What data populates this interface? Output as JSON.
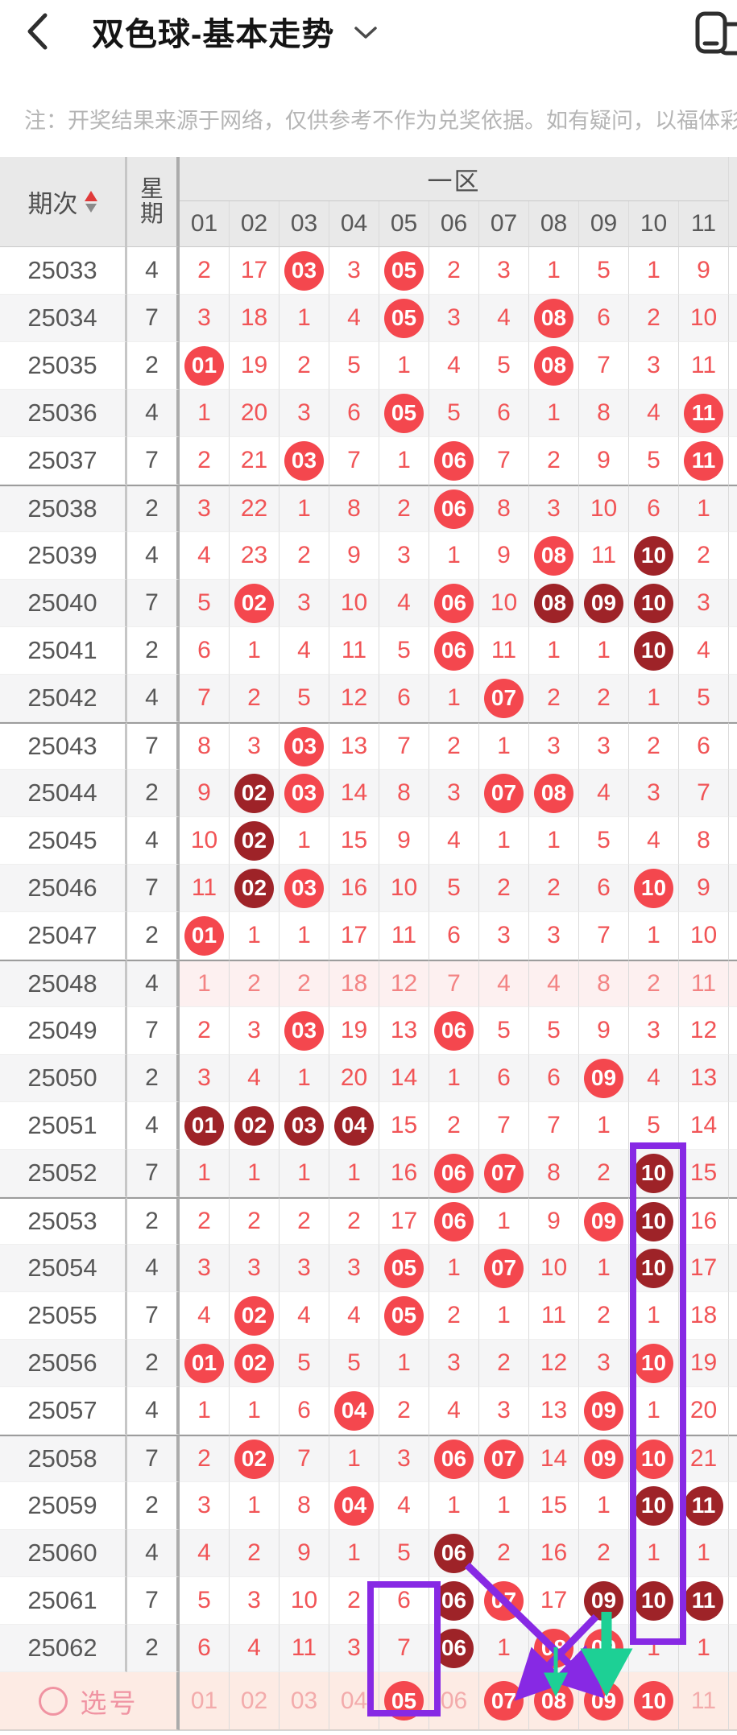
{
  "navbar": {
    "title": "双色球-基本走势",
    "back_icon": "chevron-left",
    "dropdown_icon": "chevron-down",
    "window_icon": "floating-window"
  },
  "note": "注：开奖结果来源于网络，仅供参考不作为兑奖依据。如有疑问，以福体彩",
  "table": {
    "header": {
      "period": "期次",
      "week": "星期",
      "zone": "一区",
      "columns": [
        "01",
        "02",
        "03",
        "04",
        "05",
        "06",
        "07",
        "08",
        "09",
        "10",
        "11"
      ]
    },
    "rows": [
      {
        "period": "25033",
        "week": "4",
        "cells": [
          [
            "2"
          ],
          [
            "17"
          ],
          [
            "03",
            "r"
          ],
          [
            "3"
          ],
          [
            "05",
            "r"
          ],
          [
            "2"
          ],
          [
            "3"
          ],
          [
            "1"
          ],
          [
            "5"
          ],
          [
            "1"
          ],
          [
            "9"
          ]
        ]
      },
      {
        "period": "25034",
        "week": "7",
        "cells": [
          [
            "3"
          ],
          [
            "18"
          ],
          [
            "1"
          ],
          [
            "4"
          ],
          [
            "05",
            "r"
          ],
          [
            "3"
          ],
          [
            "4"
          ],
          [
            "08",
            "r"
          ],
          [
            "6"
          ],
          [
            "2"
          ],
          [
            "10"
          ]
        ]
      },
      {
        "period": "25035",
        "week": "2",
        "cells": [
          [
            "01",
            "r"
          ],
          [
            "19"
          ],
          [
            "2"
          ],
          [
            "5"
          ],
          [
            "1"
          ],
          [
            "4"
          ],
          [
            "5"
          ],
          [
            "08",
            "r"
          ],
          [
            "7"
          ],
          [
            "3"
          ],
          [
            "11"
          ]
        ]
      },
      {
        "period": "25036",
        "week": "4",
        "cells": [
          [
            "1"
          ],
          [
            "20"
          ],
          [
            "3"
          ],
          [
            "6"
          ],
          [
            "05",
            "r"
          ],
          [
            "5"
          ],
          [
            "6"
          ],
          [
            "1"
          ],
          [
            "8"
          ],
          [
            "4"
          ],
          [
            "11",
            "r"
          ]
        ]
      },
      {
        "period": "25037",
        "week": "7",
        "cells": [
          [
            "2"
          ],
          [
            "21"
          ],
          [
            "03",
            "r"
          ],
          [
            "7"
          ],
          [
            "1"
          ],
          [
            "06",
            "r"
          ],
          [
            "7"
          ],
          [
            "2"
          ],
          [
            "9"
          ],
          [
            "5"
          ],
          [
            "11",
            "r"
          ]
        ]
      },
      {
        "period": "25038",
        "week": "2",
        "cells": [
          [
            "3"
          ],
          [
            "22"
          ],
          [
            "1"
          ],
          [
            "8"
          ],
          [
            "2"
          ],
          [
            "06",
            "r"
          ],
          [
            "8"
          ],
          [
            "3"
          ],
          [
            "10"
          ],
          [
            "6"
          ],
          [
            "1"
          ]
        ]
      },
      {
        "period": "25039",
        "week": "4",
        "cells": [
          [
            "4"
          ],
          [
            "23"
          ],
          [
            "2"
          ],
          [
            "9"
          ],
          [
            "3"
          ],
          [
            "1"
          ],
          [
            "9"
          ],
          [
            "08",
            "r"
          ],
          [
            "11"
          ],
          [
            "10",
            "d"
          ],
          [
            "2"
          ]
        ]
      },
      {
        "period": "25040",
        "week": "7",
        "cells": [
          [
            "5"
          ],
          [
            "02",
            "r"
          ],
          [
            "3"
          ],
          [
            "10"
          ],
          [
            "4"
          ],
          [
            "06",
            "r"
          ],
          [
            "10"
          ],
          [
            "08",
            "d"
          ],
          [
            "09",
            "d"
          ],
          [
            "10",
            "d"
          ],
          [
            "3"
          ]
        ]
      },
      {
        "period": "25041",
        "week": "2",
        "cells": [
          [
            "6"
          ],
          [
            "1"
          ],
          [
            "4"
          ],
          [
            "11"
          ],
          [
            "5"
          ],
          [
            "06",
            "r"
          ],
          [
            "11"
          ],
          [
            "1"
          ],
          [
            "1"
          ],
          [
            "10",
            "d"
          ],
          [
            "4"
          ]
        ]
      },
      {
        "period": "25042",
        "week": "4",
        "cells": [
          [
            "7"
          ],
          [
            "2"
          ],
          [
            "5"
          ],
          [
            "12"
          ],
          [
            "6"
          ],
          [
            "1"
          ],
          [
            "07",
            "r"
          ],
          [
            "2"
          ],
          [
            "2"
          ],
          [
            "1"
          ],
          [
            "5"
          ]
        ]
      },
      {
        "period": "25043",
        "week": "7",
        "cells": [
          [
            "8"
          ],
          [
            "3"
          ],
          [
            "03",
            "r"
          ],
          [
            "13"
          ],
          [
            "7"
          ],
          [
            "2"
          ],
          [
            "1"
          ],
          [
            "3"
          ],
          [
            "3"
          ],
          [
            "2"
          ],
          [
            "6"
          ]
        ]
      },
      {
        "period": "25044",
        "week": "2",
        "cells": [
          [
            "9"
          ],
          [
            "02",
            "d"
          ],
          [
            "03",
            "r"
          ],
          [
            "14"
          ],
          [
            "8"
          ],
          [
            "3"
          ],
          [
            "07",
            "r"
          ],
          [
            "08",
            "r"
          ],
          [
            "4"
          ],
          [
            "3"
          ],
          [
            "7"
          ]
        ]
      },
      {
        "period": "25045",
        "week": "4",
        "cells": [
          [
            "10"
          ],
          [
            "02",
            "d"
          ],
          [
            "1"
          ],
          [
            "15"
          ],
          [
            "9"
          ],
          [
            "4"
          ],
          [
            "1"
          ],
          [
            "1"
          ],
          [
            "5"
          ],
          [
            "4"
          ],
          [
            "8"
          ]
        ]
      },
      {
        "period": "25046",
        "week": "7",
        "cells": [
          [
            "11"
          ],
          [
            "02",
            "d"
          ],
          [
            "03",
            "r"
          ],
          [
            "16"
          ],
          [
            "10"
          ],
          [
            "5"
          ],
          [
            "2"
          ],
          [
            "2"
          ],
          [
            "6"
          ],
          [
            "10",
            "r"
          ],
          [
            "9"
          ]
        ]
      },
      {
        "period": "25047",
        "week": "2",
        "cells": [
          [
            "01",
            "r"
          ],
          [
            "1"
          ],
          [
            "1"
          ],
          [
            "17"
          ],
          [
            "11"
          ],
          [
            "6"
          ],
          [
            "3"
          ],
          [
            "3"
          ],
          [
            "7"
          ],
          [
            "1"
          ],
          [
            "10"
          ]
        ]
      },
      {
        "period": "25048",
        "week": "4",
        "highlight": true,
        "cells": [
          [
            "1"
          ],
          [
            "2"
          ],
          [
            "2"
          ],
          [
            "18"
          ],
          [
            "12"
          ],
          [
            "7"
          ],
          [
            "4"
          ],
          [
            "4"
          ],
          [
            "8"
          ],
          [
            "2"
          ],
          [
            "11"
          ]
        ]
      },
      {
        "period": "25049",
        "week": "7",
        "cells": [
          [
            "2"
          ],
          [
            "3"
          ],
          [
            "03",
            "r"
          ],
          [
            "19"
          ],
          [
            "13"
          ],
          [
            "06",
            "r"
          ],
          [
            "5"
          ],
          [
            "5"
          ],
          [
            "9"
          ],
          [
            "3"
          ],
          [
            "12"
          ]
        ]
      },
      {
        "period": "25050",
        "week": "2",
        "cells": [
          [
            "3"
          ],
          [
            "4"
          ],
          [
            "1"
          ],
          [
            "20"
          ],
          [
            "14"
          ],
          [
            "1"
          ],
          [
            "6"
          ],
          [
            "6"
          ],
          [
            "09",
            "r"
          ],
          [
            "4"
          ],
          [
            "13"
          ]
        ]
      },
      {
        "period": "25051",
        "week": "4",
        "cells": [
          [
            "01",
            "d"
          ],
          [
            "02",
            "d"
          ],
          [
            "03",
            "d"
          ],
          [
            "04",
            "d"
          ],
          [
            "15"
          ],
          [
            "2"
          ],
          [
            "7"
          ],
          [
            "7"
          ],
          [
            "1"
          ],
          [
            "5"
          ],
          [
            "14"
          ]
        ]
      },
      {
        "period": "25052",
        "week": "7",
        "cells": [
          [
            "1"
          ],
          [
            "1"
          ],
          [
            "1"
          ],
          [
            "1"
          ],
          [
            "16"
          ],
          [
            "06",
            "r"
          ],
          [
            "07",
            "r"
          ],
          [
            "8"
          ],
          [
            "2"
          ],
          [
            "10",
            "d"
          ],
          [
            "15"
          ]
        ]
      },
      {
        "period": "25053",
        "week": "2",
        "cells": [
          [
            "2"
          ],
          [
            "2"
          ],
          [
            "2"
          ],
          [
            "2"
          ],
          [
            "17"
          ],
          [
            "06",
            "r"
          ],
          [
            "1"
          ],
          [
            "9"
          ],
          [
            "09",
            "r"
          ],
          [
            "10",
            "d"
          ],
          [
            "16"
          ]
        ]
      },
      {
        "period": "25054",
        "week": "4",
        "cells": [
          [
            "3"
          ],
          [
            "3"
          ],
          [
            "3"
          ],
          [
            "3"
          ],
          [
            "05",
            "r"
          ],
          [
            "1"
          ],
          [
            "07",
            "r"
          ],
          [
            "10"
          ],
          [
            "1"
          ],
          [
            "10",
            "d"
          ],
          [
            "17"
          ]
        ]
      },
      {
        "period": "25055",
        "week": "7",
        "cells": [
          [
            "4"
          ],
          [
            "02",
            "r"
          ],
          [
            "4"
          ],
          [
            "4"
          ],
          [
            "05",
            "r"
          ],
          [
            "2"
          ],
          [
            "1"
          ],
          [
            "11"
          ],
          [
            "2"
          ],
          [
            "1"
          ],
          [
            "18"
          ]
        ]
      },
      {
        "period": "25056",
        "week": "2",
        "cells": [
          [
            "01",
            "r"
          ],
          [
            "02",
            "r"
          ],
          [
            "5"
          ],
          [
            "5"
          ],
          [
            "1"
          ],
          [
            "3"
          ],
          [
            "2"
          ],
          [
            "12"
          ],
          [
            "3"
          ],
          [
            "10",
            "r"
          ],
          [
            "19"
          ]
        ]
      },
      {
        "period": "25057",
        "week": "4",
        "cells": [
          [
            "1"
          ],
          [
            "1"
          ],
          [
            "6"
          ],
          [
            "04",
            "r"
          ],
          [
            "2"
          ],
          [
            "4"
          ],
          [
            "3"
          ],
          [
            "13"
          ],
          [
            "09",
            "r"
          ],
          [
            "1"
          ],
          [
            "20"
          ]
        ]
      },
      {
        "period": "25058",
        "week": "7",
        "cells": [
          [
            "2"
          ],
          [
            "02",
            "r"
          ],
          [
            "7"
          ],
          [
            "1"
          ],
          [
            "3"
          ],
          [
            "06",
            "r"
          ],
          [
            "07",
            "r"
          ],
          [
            "14"
          ],
          [
            "09",
            "r"
          ],
          [
            "10",
            "r"
          ],
          [
            "21"
          ]
        ]
      },
      {
        "period": "25059",
        "week": "2",
        "cells": [
          [
            "3"
          ],
          [
            "1"
          ],
          [
            "8"
          ],
          [
            "04",
            "r"
          ],
          [
            "4"
          ],
          [
            "1"
          ],
          [
            "1"
          ],
          [
            "15"
          ],
          [
            "1"
          ],
          [
            "10",
            "d"
          ],
          [
            "11",
            "d"
          ]
        ]
      },
      {
        "period": "25060",
        "week": "4",
        "cells": [
          [
            "4"
          ],
          [
            "2"
          ],
          [
            "9"
          ],
          [
            "1"
          ],
          [
            "5"
          ],
          [
            "06",
            "d"
          ],
          [
            "2"
          ],
          [
            "16"
          ],
          [
            "2"
          ],
          [
            "1"
          ],
          [
            "1"
          ]
        ]
      },
      {
        "period": "25061",
        "week": "7",
        "cells": [
          [
            "5"
          ],
          [
            "3"
          ],
          [
            "10"
          ],
          [
            "2"
          ],
          [
            "6"
          ],
          [
            "06",
            "d"
          ],
          [
            "07",
            "r"
          ],
          [
            "17"
          ],
          [
            "09",
            "d"
          ],
          [
            "10",
            "d"
          ],
          [
            "11",
            "d"
          ]
        ]
      },
      {
        "period": "25062",
        "week": "2",
        "cells": [
          [
            "6"
          ],
          [
            "4"
          ],
          [
            "11"
          ],
          [
            "3"
          ],
          [
            "7"
          ],
          [
            "06",
            "d"
          ],
          [
            "1"
          ],
          [
            "08",
            "r"
          ],
          [
            "09",
            "r"
          ],
          [
            "1"
          ],
          [
            "1"
          ]
        ]
      }
    ],
    "selection_row": {
      "label": "选号",
      "cells": [
        [
          "01"
        ],
        [
          "02"
        ],
        [
          "03"
        ],
        [
          "04"
        ],
        [
          "05",
          "r"
        ],
        [
          "06"
        ],
        [
          "07",
          "r"
        ],
        [
          "08",
          "r"
        ],
        [
          "09",
          "r"
        ],
        [
          "10",
          "r"
        ],
        [
          "11"
        ]
      ]
    }
  },
  "annotations": {
    "purple_color": "#8729e4",
    "teal_color": "#1dd095",
    "boxes": [
      "column-10 rows 25052-25062",
      "column-05 rows 25061-selection"
    ],
    "arrows": [
      "purple from 25060-06 to selection-09",
      "purple from 25061-09 to selection-07",
      "teal thick from 25061-09 down to selection-09",
      "teal thin down to selection-08"
    ]
  },
  "colors": {
    "ball_red": "#f4474e",
    "ball_dark": "#9e2328",
    "number_red": "#f15456",
    "header_bg": "#e9e9e9",
    "alt_row_bg": "#f5f5f6",
    "highlight_row_bg": "#fdf0f0",
    "selection_row_bg": "#fdebe4"
  }
}
